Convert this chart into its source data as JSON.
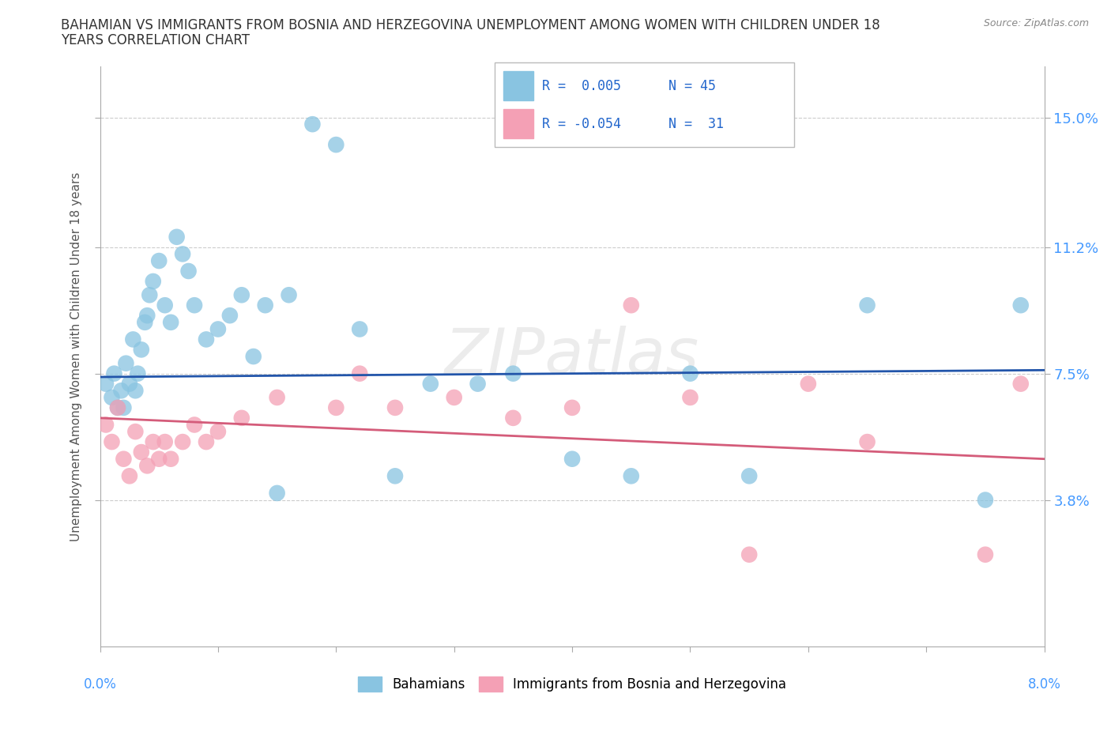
{
  "title_line1": "BAHAMIAN VS IMMIGRANTS FROM BOSNIA AND HERZEGOVINA UNEMPLOYMENT AMONG WOMEN WITH CHILDREN UNDER 18",
  "title_line2": "YEARS CORRELATION CHART",
  "source": "Source: ZipAtlas.com",
  "ylabel": "Unemployment Among Women with Children Under 18 years",
  "xlim": [
    0.0,
    8.0
  ],
  "ylim": [
    -0.5,
    16.5
  ],
  "yticks": [
    3.8,
    7.5,
    11.2,
    15.0
  ],
  "xticks": [
    0.0,
    1.0,
    2.0,
    3.0,
    4.0,
    5.0,
    6.0,
    7.0,
    8.0
  ],
  "ytick_labels": [
    "3.8%",
    "7.5%",
    "11.2%",
    "15.0%"
  ],
  "blue_color": "#89c4e1",
  "pink_color": "#f4a0b5",
  "blue_line_color": "#2255aa",
  "pink_line_color": "#d45c7a",
  "legend_R_blue": "R =  0.005",
  "legend_N_blue": "N = 45",
  "legend_R_pink": "R = -0.054",
  "legend_N_pink": "N =  31",
  "blue_x": [
    0.05,
    0.1,
    0.12,
    0.15,
    0.18,
    0.2,
    0.22,
    0.25,
    0.28,
    0.3,
    0.32,
    0.35,
    0.38,
    0.4,
    0.42,
    0.45,
    0.5,
    0.55,
    0.6,
    0.65,
    0.7,
    0.75,
    0.8,
    0.9,
    1.0,
    1.1,
    1.2,
    1.3,
    1.4,
    1.5,
    1.6,
    1.8,
    2.0,
    2.2,
    2.5,
    2.8,
    3.2,
    3.5,
    4.0,
    4.5,
    5.0,
    5.5,
    6.5,
    7.5,
    7.8
  ],
  "blue_y": [
    7.2,
    6.8,
    7.5,
    6.5,
    7.0,
    6.5,
    7.8,
    7.2,
    8.5,
    7.0,
    7.5,
    8.2,
    9.0,
    9.2,
    9.8,
    10.2,
    10.8,
    9.5,
    9.0,
    11.5,
    11.0,
    10.5,
    9.5,
    8.5,
    8.8,
    9.2,
    9.8,
    8.0,
    9.5,
    4.0,
    9.8,
    14.8,
    14.2,
    8.8,
    4.5,
    7.2,
    7.2,
    7.5,
    5.0,
    4.5,
    7.5,
    4.5,
    9.5,
    3.8,
    9.5
  ],
  "pink_x": [
    0.05,
    0.1,
    0.15,
    0.2,
    0.25,
    0.3,
    0.35,
    0.4,
    0.45,
    0.5,
    0.55,
    0.6,
    0.7,
    0.8,
    0.9,
    1.0,
    1.2,
    1.5,
    2.0,
    2.2,
    2.5,
    3.0,
    3.5,
    4.0,
    4.5,
    5.0,
    5.5,
    6.0,
    6.5,
    7.5,
    7.8
  ],
  "pink_y": [
    6.0,
    5.5,
    6.5,
    5.0,
    4.5,
    5.8,
    5.2,
    4.8,
    5.5,
    5.0,
    5.5,
    5.0,
    5.5,
    6.0,
    5.5,
    5.8,
    6.2,
    6.8,
    6.5,
    7.5,
    6.5,
    6.8,
    6.2,
    6.5,
    9.5,
    6.8,
    2.2,
    7.2,
    5.5,
    2.2,
    7.2
  ]
}
